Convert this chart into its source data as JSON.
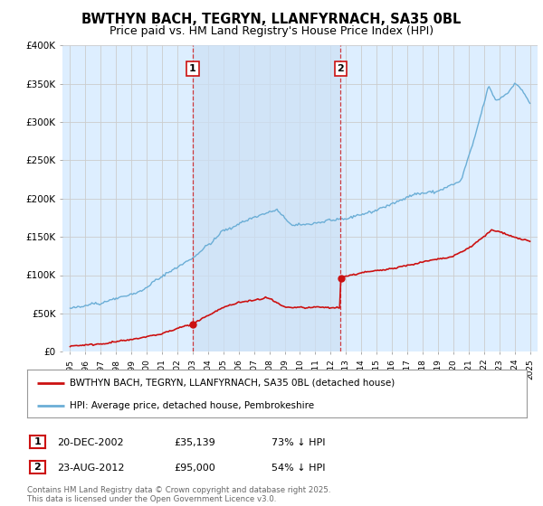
{
  "title": "BWTHYN BACH, TEGRYN, LLANFYRNACH, SA35 0BL",
  "subtitle": "Price paid vs. HM Land Registry's House Price Index (HPI)",
  "title_fontsize": 10.5,
  "subtitle_fontsize": 9,
  "background_color": "#ffffff",
  "plot_bg_color": "#ddeeff",
  "grid_color": "#cccccc",
  "ylim": [
    0,
    400000
  ],
  "yticks": [
    0,
    50000,
    100000,
    150000,
    200000,
    250000,
    300000,
    350000,
    400000
  ],
  "ytick_labels": [
    "£0",
    "£50K",
    "£100K",
    "£150K",
    "£200K",
    "£250K",
    "£300K",
    "£350K",
    "£400K"
  ],
  "hpi_color": "#6baed6",
  "price_color": "#cc1111",
  "vline_color": "#cc1111",
  "shade_color": "#cce0f5",
  "transactions": [
    {
      "date_num": 2003.0,
      "price": 35139,
      "label": "1"
    },
    {
      "date_num": 2012.65,
      "price": 95000,
      "label": "2"
    }
  ],
  "legend_entries": [
    "BWTHYN BACH, TEGRYN, LLANFYRNACH, SA35 0BL (detached house)",
    "HPI: Average price, detached house, Pembrokeshire"
  ],
  "table_rows": [
    {
      "num": "1",
      "date": "20-DEC-2002",
      "price": "£35,139",
      "change": "73% ↓ HPI"
    },
    {
      "num": "2",
      "date": "23-AUG-2012",
      "price": "£95,000",
      "change": "54% ↓ HPI"
    }
  ],
  "footnote": "Contains HM Land Registry data © Crown copyright and database right 2025.\nThis data is licensed under the Open Government Licence v3.0.",
  "xlim_start": 1994.5,
  "xlim_end": 2025.5
}
